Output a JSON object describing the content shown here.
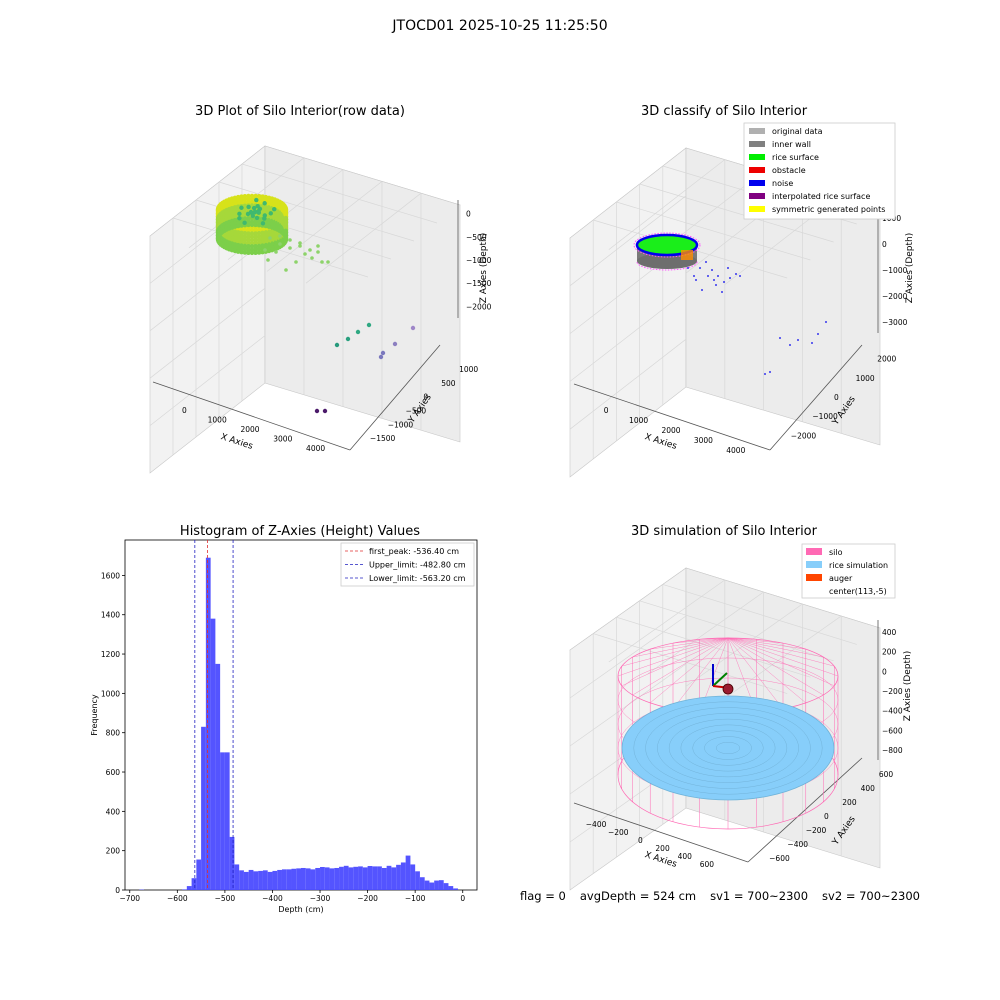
{
  "figure": {
    "suptitle": "JTOCD01 2025-10-25 11:25:50",
    "panels": {
      "raw": {
        "title": "3D Plot of Silo Interior(row data)",
        "xlabel": "X Axies",
        "ylabel": "Y Axies",
        "zlabel": "Z Axies (Depth)"
      },
      "classify": {
        "title": "3D classify of Silo Interior",
        "xlabel": "X Axies",
        "ylabel": "Y Axies",
        "zlabel": "Z Axies (Depth)"
      },
      "histogram": {
        "title": "Histogram of Z-Axies (Height) Values"
      },
      "simulation": {
        "title": "3D simulation of Silo Interior",
        "xlabel": "X Axies",
        "ylabel": "Y Axies",
        "zlabel": "Z Axies (Depth)"
      }
    }
  },
  "status": {
    "flag": "flag = 0",
    "avg_depth": "avgDepth = 524 cm",
    "sv1": "sv1 = 700~2300",
    "sv2": "sv2 = 700~2300"
  },
  "colors": {
    "hist_bar": "#4b4bff",
    "first_peak": "#e03030",
    "limit": "#2020c0",
    "pane": "#f2f2f2",
    "grid": "#d8d8d8"
  },
  "chart_data": [
    {
      "type": "scatter",
      "projection": "3d",
      "title": "3D Plot of Silo Interior(row data)",
      "xlabel": "X Axies",
      "ylabel": "Y Axies",
      "zlabel": "Z Axies (Depth)",
      "x_ticks": [
        "0",
        "1000",
        "2000",
        "3000",
        "4000"
      ],
      "y_ticks": [
        "−1500",
        "−1000",
        "−500",
        "0",
        "500",
        "1000"
      ],
      "z_ticks": [
        "−2000",
        "−1500",
        "−1000",
        "−500",
        "0"
      ],
      "grid": true,
      "colormap": "viridis by depth",
      "outlier_points": [
        {
          "x": 3500,
          "y": 1000,
          "z": -1600
        },
        {
          "x": 3300,
          "y": 700,
          "z": -1800
        },
        {
          "x": 3200,
          "y": 600,
          "z": -1900
        },
        {
          "x": 2800,
          "y": 1000,
          "z": -1900
        },
        {
          "x": 2600,
          "y": 900,
          "z": -2000
        },
        {
          "x": 2400,
          "y": 800,
          "z": -2050
        },
        {
          "x": 3600,
          "y": -300,
          "z": -2250
        },
        {
          "x": 3700,
          "y": -300,
          "z": -2250
        }
      ]
    },
    {
      "type": "scatter",
      "projection": "3d",
      "title": "3D classify of Silo Interior",
      "xlabel": "X Axies",
      "ylabel": "Y Axies",
      "zlabel": "Z Axies (Depth)",
      "x_ticks": [
        "0",
        "1000",
        "2000",
        "3000",
        "4000"
      ],
      "y_ticks": [
        "−2000",
        "−1000",
        "0",
        "1000",
        "2000"
      ],
      "z_ticks": [
        "−3000",
        "−2000",
        "−1000",
        "0",
        "1000"
      ],
      "grid": true,
      "legend_position": "top-right",
      "legend": [
        {
          "label": "original data",
          "color": "#b0b0b0"
        },
        {
          "label": "inner wall",
          "color": "#808080"
        },
        {
          "label": "rice surface",
          "color": "#00ee00"
        },
        {
          "label": "obstacle",
          "color": "#ee0000"
        },
        {
          "label": "noise",
          "color": "#0000ee"
        },
        {
          "label": "interpolated rice surface",
          "color": "#800080"
        },
        {
          "label": "symmetric generated points",
          "color": "#ffff00"
        }
      ]
    },
    {
      "type": "bar",
      "title": "Histogram of Z-Axies (Height) Values",
      "xlabel": "Depth (cm)",
      "ylabel": "Frequency",
      "xlim": [
        -710,
        30
      ],
      "ylim": [
        0,
        1780
      ],
      "x_ticks": [
        "−700",
        "−600",
        "−500",
        "−400",
        "−300",
        "−200",
        "−100",
        "0"
      ],
      "y_ticks": [
        "0",
        "200",
        "400",
        "600",
        "800",
        "1000",
        "1200",
        "1400",
        "1600"
      ],
      "bin_width": 10,
      "bins": [
        [
          -680,
          2
        ],
        [
          -590,
          3
        ],
        [
          -580,
          20
        ],
        [
          -570,
          60
        ],
        [
          -560,
          155
        ],
        [
          -550,
          830
        ],
        [
          -540,
          1690
        ],
        [
          -530,
          1380
        ],
        [
          -520,
          1150
        ],
        [
          -510,
          700
        ],
        [
          -500,
          700
        ],
        [
          -490,
          270
        ],
        [
          -480,
          130
        ],
        [
          -470,
          100
        ],
        [
          -460,
          92
        ],
        [
          -450,
          102
        ],
        [
          -440,
          95
        ],
        [
          -430,
          97
        ],
        [
          -420,
          100
        ],
        [
          -410,
          92
        ],
        [
          -400,
          97
        ],
        [
          -390,
          102
        ],
        [
          -380,
          105
        ],
        [
          -370,
          105
        ],
        [
          -360,
          108
        ],
        [
          -350,
          110
        ],
        [
          -340,
          112
        ],
        [
          -330,
          110
        ],
        [
          -320,
          105
        ],
        [
          -310,
          112
        ],
        [
          -300,
          117
        ],
        [
          -290,
          115
        ],
        [
          -280,
          110
        ],
        [
          -270,
          112
        ],
        [
          -260,
          118
        ],
        [
          -250,
          123
        ],
        [
          -240,
          115
        ],
        [
          -230,
          118
        ],
        [
          -220,
          120
        ],
        [
          -210,
          115
        ],
        [
          -200,
          122
        ],
        [
          -190,
          120
        ],
        [
          -180,
          120
        ],
        [
          -170,
          112
        ],
        [
          -160,
          123
        ],
        [
          -150,
          115
        ],
        [
          -140,
          128
        ],
        [
          -130,
          140
        ],
        [
          -120,
          175
        ],
        [
          -110,
          130
        ],
        [
          -100,
          95
        ],
        [
          -90,
          65
        ],
        [
          -80,
          48
        ],
        [
          -70,
          38
        ],
        [
          -60,
          48
        ],
        [
          -50,
          50
        ],
        [
          -40,
          35
        ],
        [
          -30,
          20
        ],
        [
          -20,
          8
        ]
      ],
      "reference_lines": [
        {
          "label": "first_peak: -536.40 cm",
          "x": -536.4,
          "color": "#e03030"
        },
        {
          "label": "Upper_limit: -482.80 cm",
          "x": -482.8,
          "color": "#2020c0"
        },
        {
          "label": "Lower_limit: -563.20 cm",
          "x": -563.2,
          "color": "#2020c0"
        }
      ],
      "legend_position": "top-right"
    },
    {
      "type": "scatter",
      "projection": "3d",
      "title": "3D simulation of Silo Interior",
      "xlabel": "X Axies",
      "ylabel": "Y Axies",
      "zlabel": "Z Axies (Depth)",
      "x_ticks": [
        "−400",
        "−200",
        "0",
        "200",
        "400",
        "600"
      ],
      "y_ticks": [
        "−600",
        "−400",
        "−200",
        "0",
        "200",
        "400",
        "600"
      ],
      "z_ticks": [
        "−800",
        "−600",
        "−400",
        "−200",
        "0",
        "200",
        "400"
      ],
      "grid": true,
      "legend_position": "top-right",
      "legend": [
        {
          "label": "silo",
          "color": "#ff69b4"
        },
        {
          "label": "rice simulation",
          "color": "#87cefa"
        },
        {
          "label": "auger",
          "color": "#ff4500"
        },
        {
          "label": "center(113,-5)",
          "color": ""
        }
      ]
    }
  ]
}
